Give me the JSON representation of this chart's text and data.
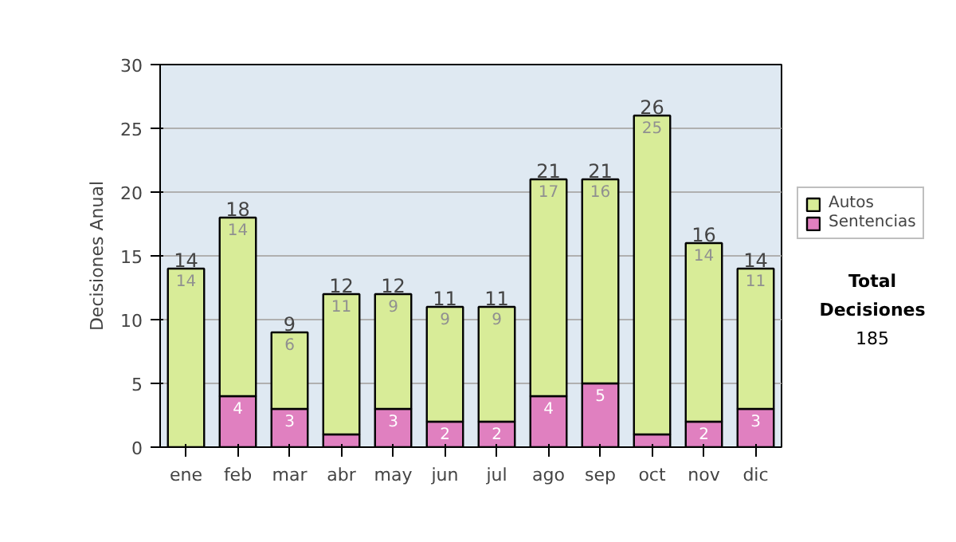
{
  "chart_data": {
    "type": "bar",
    "stacked": true,
    "ylabel": "Decisiones Anual",
    "categories": [
      "ene",
      "feb",
      "mar",
      "abr",
      "may",
      "jun",
      "jul",
      "ago",
      "sep",
      "oct",
      "nov",
      "dic"
    ],
    "series": [
      {
        "name": "Sentencias",
        "color": "#e080c0",
        "values": [
          0,
          4,
          3,
          1,
          3,
          2,
          2,
          4,
          5,
          1,
          2,
          3
        ],
        "value_labels": [
          null,
          "4",
          "3",
          null,
          "3",
          "2",
          "2",
          "4",
          "5",
          null,
          "2",
          "3"
        ]
      },
      {
        "name": "Autos",
        "color": "#d8ec98",
        "values": [
          14,
          14,
          6,
          11,
          9,
          9,
          9,
          17,
          16,
          25,
          14,
          11
        ],
        "value_labels": [
          "14",
          "14",
          "6",
          "11",
          "9",
          "9",
          "9",
          "17",
          "16",
          "25",
          "14",
          "11"
        ]
      }
    ],
    "totals": [
      "14",
      "18",
      "9",
      "12",
      "12",
      "11",
      "11",
      "21",
      "21",
      "26",
      "16",
      "14"
    ],
    "ylim": [
      0,
      30
    ],
    "yticks": [
      0,
      5,
      10,
      15,
      20,
      25,
      30
    ],
    "grid": "y",
    "legend": "right",
    "annotations": [
      "Total Decisiones",
      "185"
    ]
  }
}
